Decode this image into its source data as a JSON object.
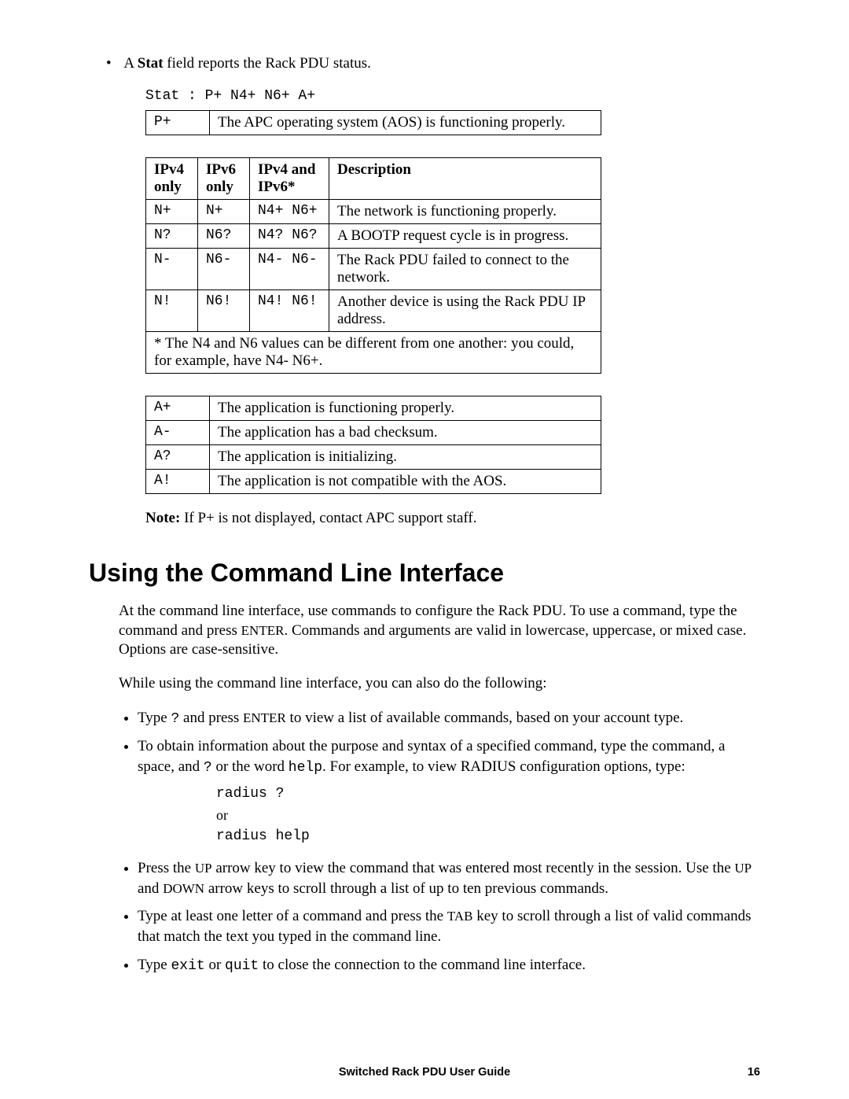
{
  "intro": {
    "stat_intro_pre": "A ",
    "stat_intro_bold": "Stat",
    "stat_intro_post": " field reports the Rack PDU status.",
    "stat_line": "Stat : P+ N4+ N6+ A+"
  },
  "table1": {
    "rows": [
      {
        "code": "P+",
        "desc": "The APC operating system (AOS) is functioning properly."
      }
    ]
  },
  "table2": {
    "headers": {
      "c1a": "IPv4",
      "c1b": "only",
      "c2a": "IPv6",
      "c2b": "only",
      "c3a": "IPv4 and",
      "c3b": "IPv6*",
      "c4": "Description"
    },
    "rows": [
      {
        "c1": "N+",
        "c2": "N+",
        "c3": "N4+ N6+",
        "desc": "The network is functioning properly."
      },
      {
        "c1": "N?",
        "c2": "N6?",
        "c3": "N4? N6?",
        "desc": "A BOOTP request cycle is in progress."
      },
      {
        "c1": "N-",
        "c2": "N6-",
        "c3": "N4- N6-",
        "desc": "The Rack PDU failed to connect to the network."
      },
      {
        "c1": "N!",
        "c2": "N6!",
        "c3": "N4! N6!",
        "desc": "Another device is using the Rack PDU IP address."
      }
    ],
    "footnote": "* The N4 and N6 values can be different from one another: you could, for example, have N4- N6+."
  },
  "table3": {
    "rows": [
      {
        "code": "A+",
        "desc": "The application is functioning properly."
      },
      {
        "code": "A-",
        "desc": "The application has a bad checksum."
      },
      {
        "code": "A?",
        "desc": "The application is initializing."
      },
      {
        "code": "A!",
        "desc": "The application is not compatible with the AOS."
      }
    ]
  },
  "note": {
    "bold": "Note:",
    "text": " If P+ is not displayed, contact APC support staff."
  },
  "heading": "Using the Command Line Interface",
  "para1_a": "At the command line interface, use commands to configure the Rack PDU. To use a command, type the command and press ",
  "para1_enter": "ENTER",
  "para1_b": ". Commands and arguments are valid in lowercase, uppercase, or mixed case. Options are case-sensitive.",
  "para2": "While using the command line interface, you can also do the following:",
  "list": {
    "i1a": "Type ",
    "i1code": "?",
    "i1b": " and press ",
    "i1enter": "ENTER",
    "i1c": " to view a list of available commands, based on your account type.",
    "i2a": "To obtain information about the purpose and syntax of a specified command, type the command, a space, and ",
    "i2code1": "?",
    "i2b": " or the word ",
    "i2code2": "help",
    "i2c": ". For example, to view RADIUS configuration options, type:",
    "code_block_l1": "radius ?",
    "code_block_l2": "or",
    "code_block_l3": "radius help",
    "i3a": "Press the ",
    "i3up": "UP",
    "i3b": " arrow key to view the command that was entered most recently in the session. Use the ",
    "i3up2": "UP",
    "i3c": " and ",
    "i3down": "DOWN",
    "i3d": " arrow keys to scroll through a list of up to ten previous commands.",
    "i4a": "Type at least one letter of a command and press the ",
    "i4tab": "TAB",
    "i4b": " key to scroll through a list of valid commands that match the text you typed in the command line.",
    "i5a": "Type ",
    "i5code1": "exit",
    "i5b": " or ",
    "i5code2": "quit",
    "i5c": " to close the connection to the command line interface."
  },
  "footer": {
    "title": "Switched Rack PDU User Guide",
    "page": "16"
  }
}
